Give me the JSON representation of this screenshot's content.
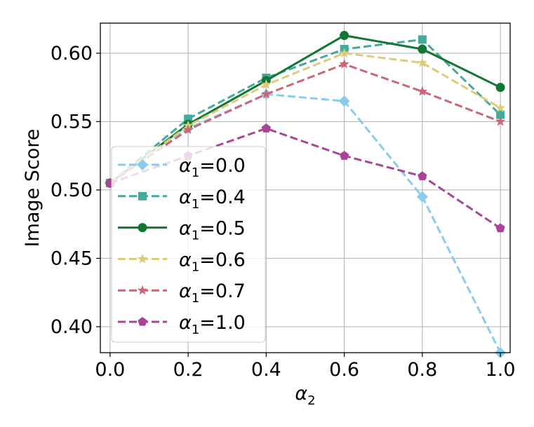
{
  "chart_data": {
    "type": "line",
    "title": "",
    "xlabel": "α₂",
    "ylabel": "Image Score",
    "x": [
      0.0,
      0.2,
      0.4,
      0.6,
      0.8,
      1.0
    ],
    "x_tick_labels": [
      "0.0",
      "0.2",
      "0.4",
      "0.6",
      "0.8",
      "1.0"
    ],
    "y_tick_values": [
      0.4,
      0.45,
      0.5,
      0.55,
      0.6
    ],
    "y_tick_labels": [
      "0.40",
      "0.45",
      "0.50",
      "0.55",
      "0.60"
    ],
    "xlim": [
      -0.025,
      1.025
    ],
    "ylim": [
      0.381,
      0.622
    ],
    "grid": true,
    "legend_position": "lower-left",
    "series": [
      {
        "name": "α₁=0.0",
        "legend_math": "α",
        "legend_sub": "1",
        "legend_value": "=0.0",
        "color": "#88CCEE",
        "dash": true,
        "marker": "diamond",
        "values": [
          0.505,
          0.545,
          0.57,
          0.565,
          0.495,
          0.381
        ]
      },
      {
        "name": "α₁=0.4",
        "legend_math": "α",
        "legend_sub": "1",
        "legend_value": "=0.4",
        "color": "#44AA99",
        "dash": true,
        "marker": "square",
        "values": [
          0.505,
          0.552,
          0.582,
          0.603,
          0.61,
          0.555
        ]
      },
      {
        "name": "α₁=0.5",
        "legend_math": "α",
        "legend_sub": "1",
        "legend_value": "=0.5",
        "color": "#117733",
        "dash": false,
        "marker": "circle",
        "values": [
          0.505,
          0.548,
          0.58,
          0.613,
          0.603,
          0.575
        ]
      },
      {
        "name": "α₁=0.6",
        "legend_math": "α",
        "legend_sub": "1",
        "legend_value": "=0.6",
        "color": "#DDCC77",
        "dash": true,
        "marker": "star",
        "values": [
          0.505,
          0.547,
          0.577,
          0.6,
          0.593,
          0.56
        ]
      },
      {
        "name": "α₁=0.7",
        "legend_math": "α",
        "legend_sub": "1",
        "legend_value": "=0.7",
        "color": "#CC6677",
        "dash": true,
        "marker": "star",
        "values": [
          0.505,
          0.544,
          0.57,
          0.592,
          0.572,
          0.55
        ]
      },
      {
        "name": "α₁=1.0",
        "legend_math": "α",
        "legend_sub": "1",
        "legend_value": "=1.0",
        "color": "#AA4499",
        "dash": true,
        "marker": "pentagon",
        "values": [
          0.505,
          0.525,
          0.545,
          0.525,
          0.51,
          0.472
        ]
      }
    ]
  }
}
